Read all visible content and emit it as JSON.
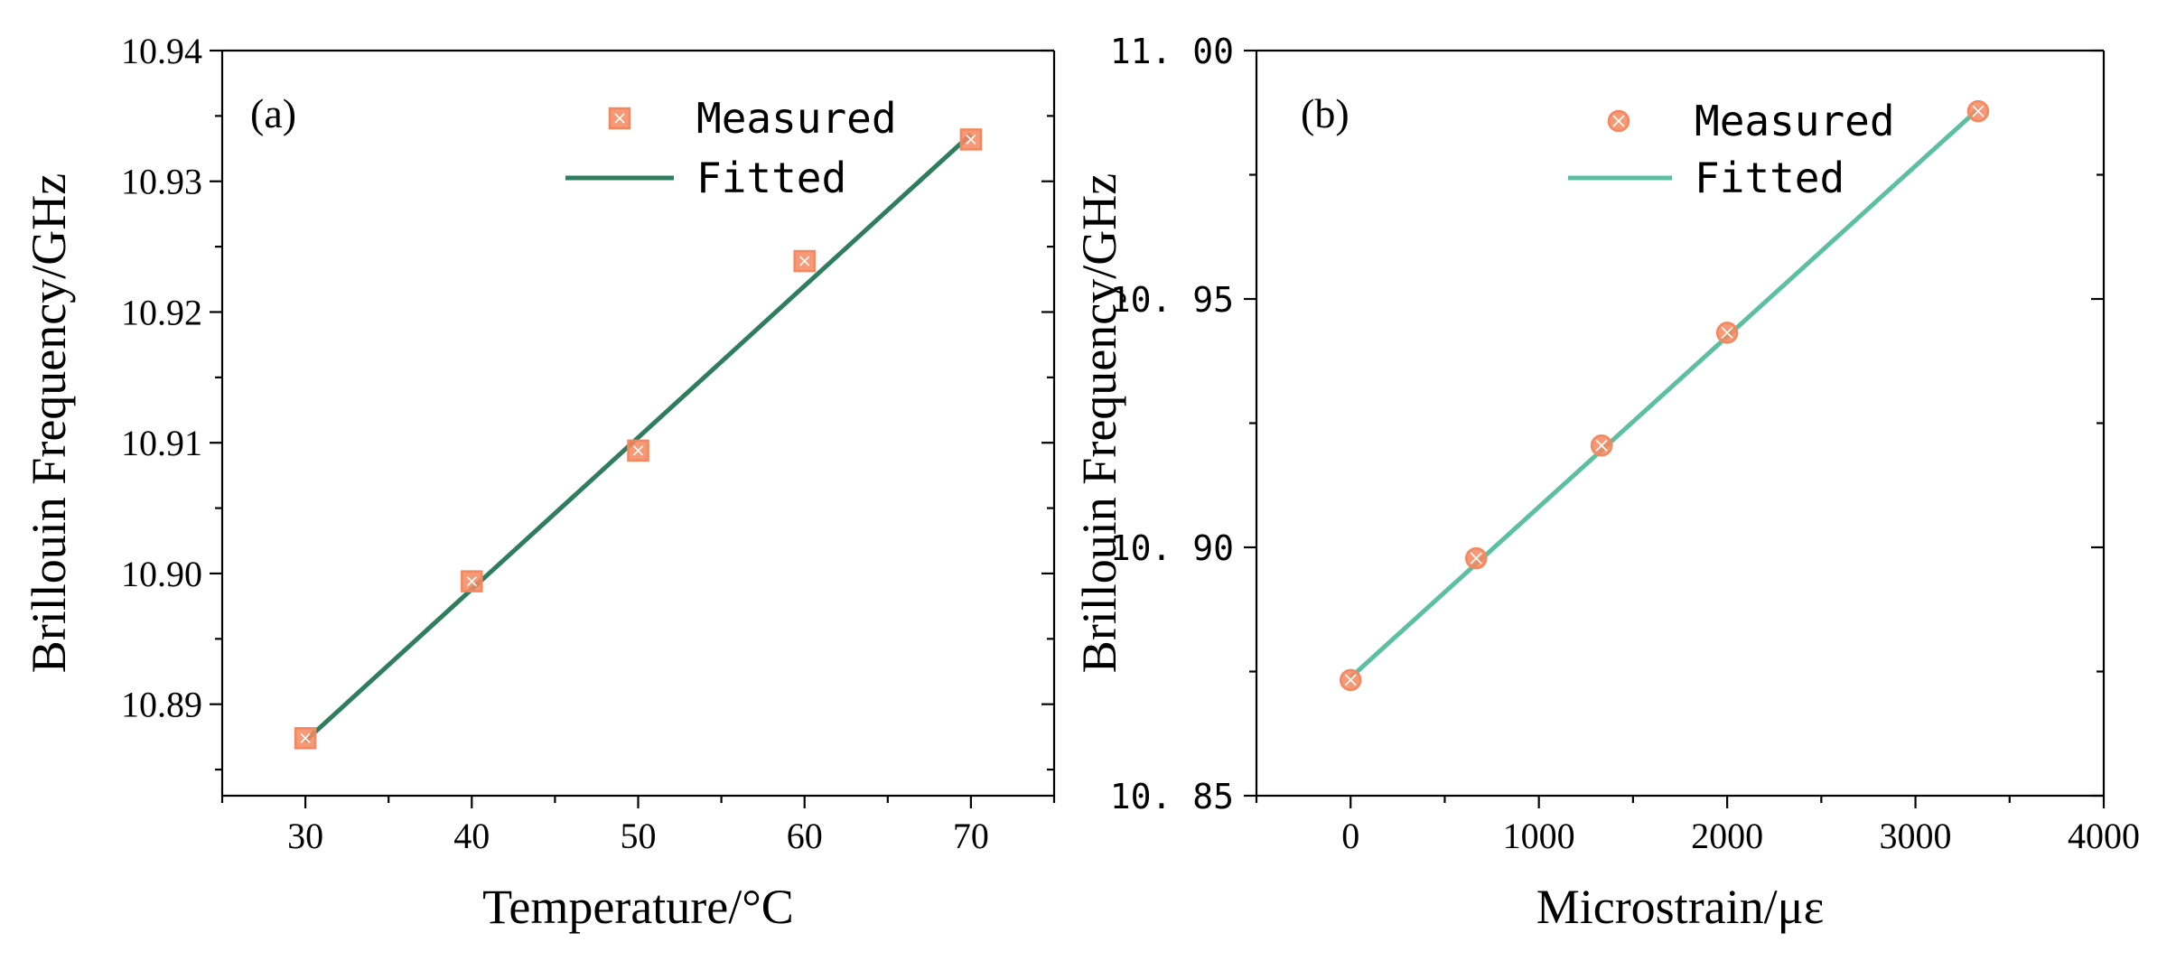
{
  "chart_data": [
    {
      "type": "scatter",
      "panel_label": "(a)",
      "xlabel": "Temperature/°C",
      "ylabel": "Brillouin Frequency/GHz",
      "xlim": [
        25,
        75
      ],
      "ylim": [
        10.883,
        10.94
      ],
      "xticks": [
        30,
        40,
        50,
        60,
        70
      ],
      "xticks_minor": [
        25,
        35,
        45,
        55,
        65,
        75
      ],
      "yticks": [
        10.89,
        10.9,
        10.91,
        10.92,
        10.93,
        10.94
      ],
      "yticks_minor": [
        10.885,
        10.895,
        10.905,
        10.915,
        10.925,
        10.935
      ],
      "xtick_labels": [
        "30",
        "40",
        "50",
        "60",
        "70"
      ],
      "ytick_labels": [
        "10.89",
        "10.90",
        "10.91",
        "10.92",
        "10.93",
        "10.94"
      ],
      "grid": false,
      "legend_position": "top-right",
      "series": [
        {
          "name": "Measured",
          "kind": "markers",
          "marker": "square",
          "color": "#F4875F",
          "x": [
            30,
            40,
            50,
            60,
            70
          ],
          "y": [
            10.8874,
            10.8994,
            10.9094,
            10.9239,
            10.9332
          ]
        },
        {
          "name": "Fitted",
          "kind": "line",
          "color": "#2E7D5E",
          "x": [
            30,
            70
          ],
          "y": [
            10.8872,
            10.9336
          ]
        }
      ]
    },
    {
      "type": "scatter",
      "panel_label": "(b)",
      "xlabel": "Microstrain/με",
      "ylabel": "Brillouin Frequency/GHz",
      "xlim": [
        -500,
        4000
      ],
      "ylim": [
        10.85,
        11.0
      ],
      "xticks": [
        0,
        1000,
        2000,
        3000,
        4000
      ],
      "xticks_minor": [
        -500,
        500,
        1500,
        2500,
        3500
      ],
      "yticks": [
        10.85,
        10.9,
        10.95,
        11.0
      ],
      "yticks_minor": [
        10.875,
        10.925,
        10.975
      ],
      "xtick_labels": [
        "0",
        "1000",
        "2000",
        "3000",
        "4000"
      ],
      "ytick_labels": [
        "10. 85",
        "10. 90",
        "10. 95",
        "11. 00"
      ],
      "grid": false,
      "legend_position": "top-right",
      "series": [
        {
          "name": "Measured",
          "kind": "markers",
          "marker": "circle-cross",
          "color": "#F4875F",
          "x": [
            0,
            667,
            1333,
            2000,
            3333
          ],
          "y": [
            10.8733,
            10.8978,
            10.9205,
            10.9432,
            10.9878
          ]
        },
        {
          "name": "Fitted",
          "kind": "line",
          "color": "#5CC0A0",
          "x": [
            0,
            3333
          ],
          "y": [
            10.8738,
            10.9882
          ]
        }
      ]
    }
  ]
}
